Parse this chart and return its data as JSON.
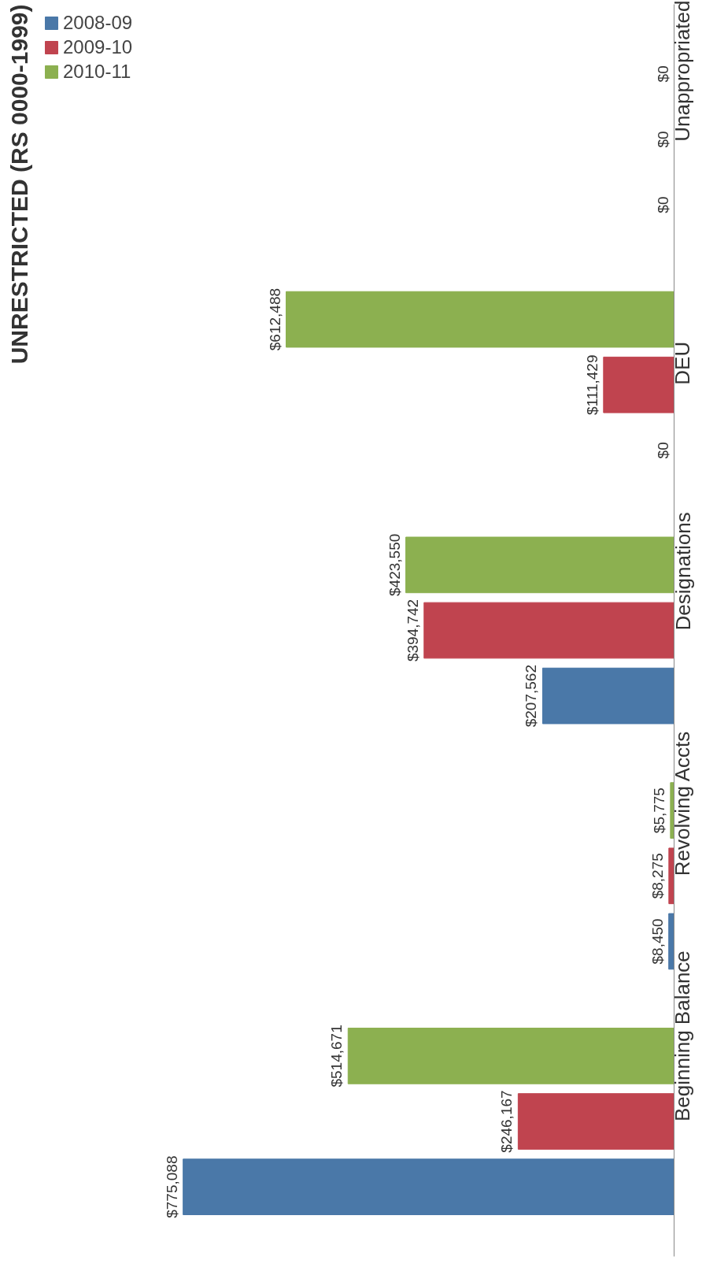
{
  "chart_data": {
    "type": "bar",
    "orientation": "horizontal",
    "title": "UNRESTRICTED (RS 0000-1999)",
    "categories": [
      "Unappropriated",
      "DEU",
      "Designations",
      "Revolving Accts",
      "Beginning Balance"
    ],
    "series": [
      {
        "name": "2008-09",
        "color": "#4a78a8",
        "values": [
          0,
          0,
          207562,
          8450,
          775088
        ],
        "value_labels": [
          "$0",
          "$0",
          "$207,562",
          "$8,450",
          "$775,088"
        ]
      },
      {
        "name": "2009-10",
        "color": "#c0444f",
        "values": [
          0,
          111429,
          394742,
          8275,
          246167
        ],
        "value_labels": [
          "$0",
          "$111,429",
          "$394,742",
          "$8,275",
          "$246,167"
        ]
      },
      {
        "name": "2010-11",
        "color": "#8cb050",
        "values": [
          0,
          612488,
          423550,
          5775,
          514671
        ],
        "value_labels": [
          "$0",
          "$612,488",
          "$423,550",
          "$5,775",
          "$514,671"
        ]
      }
    ],
    "legend": "top left",
    "grid": false
  }
}
